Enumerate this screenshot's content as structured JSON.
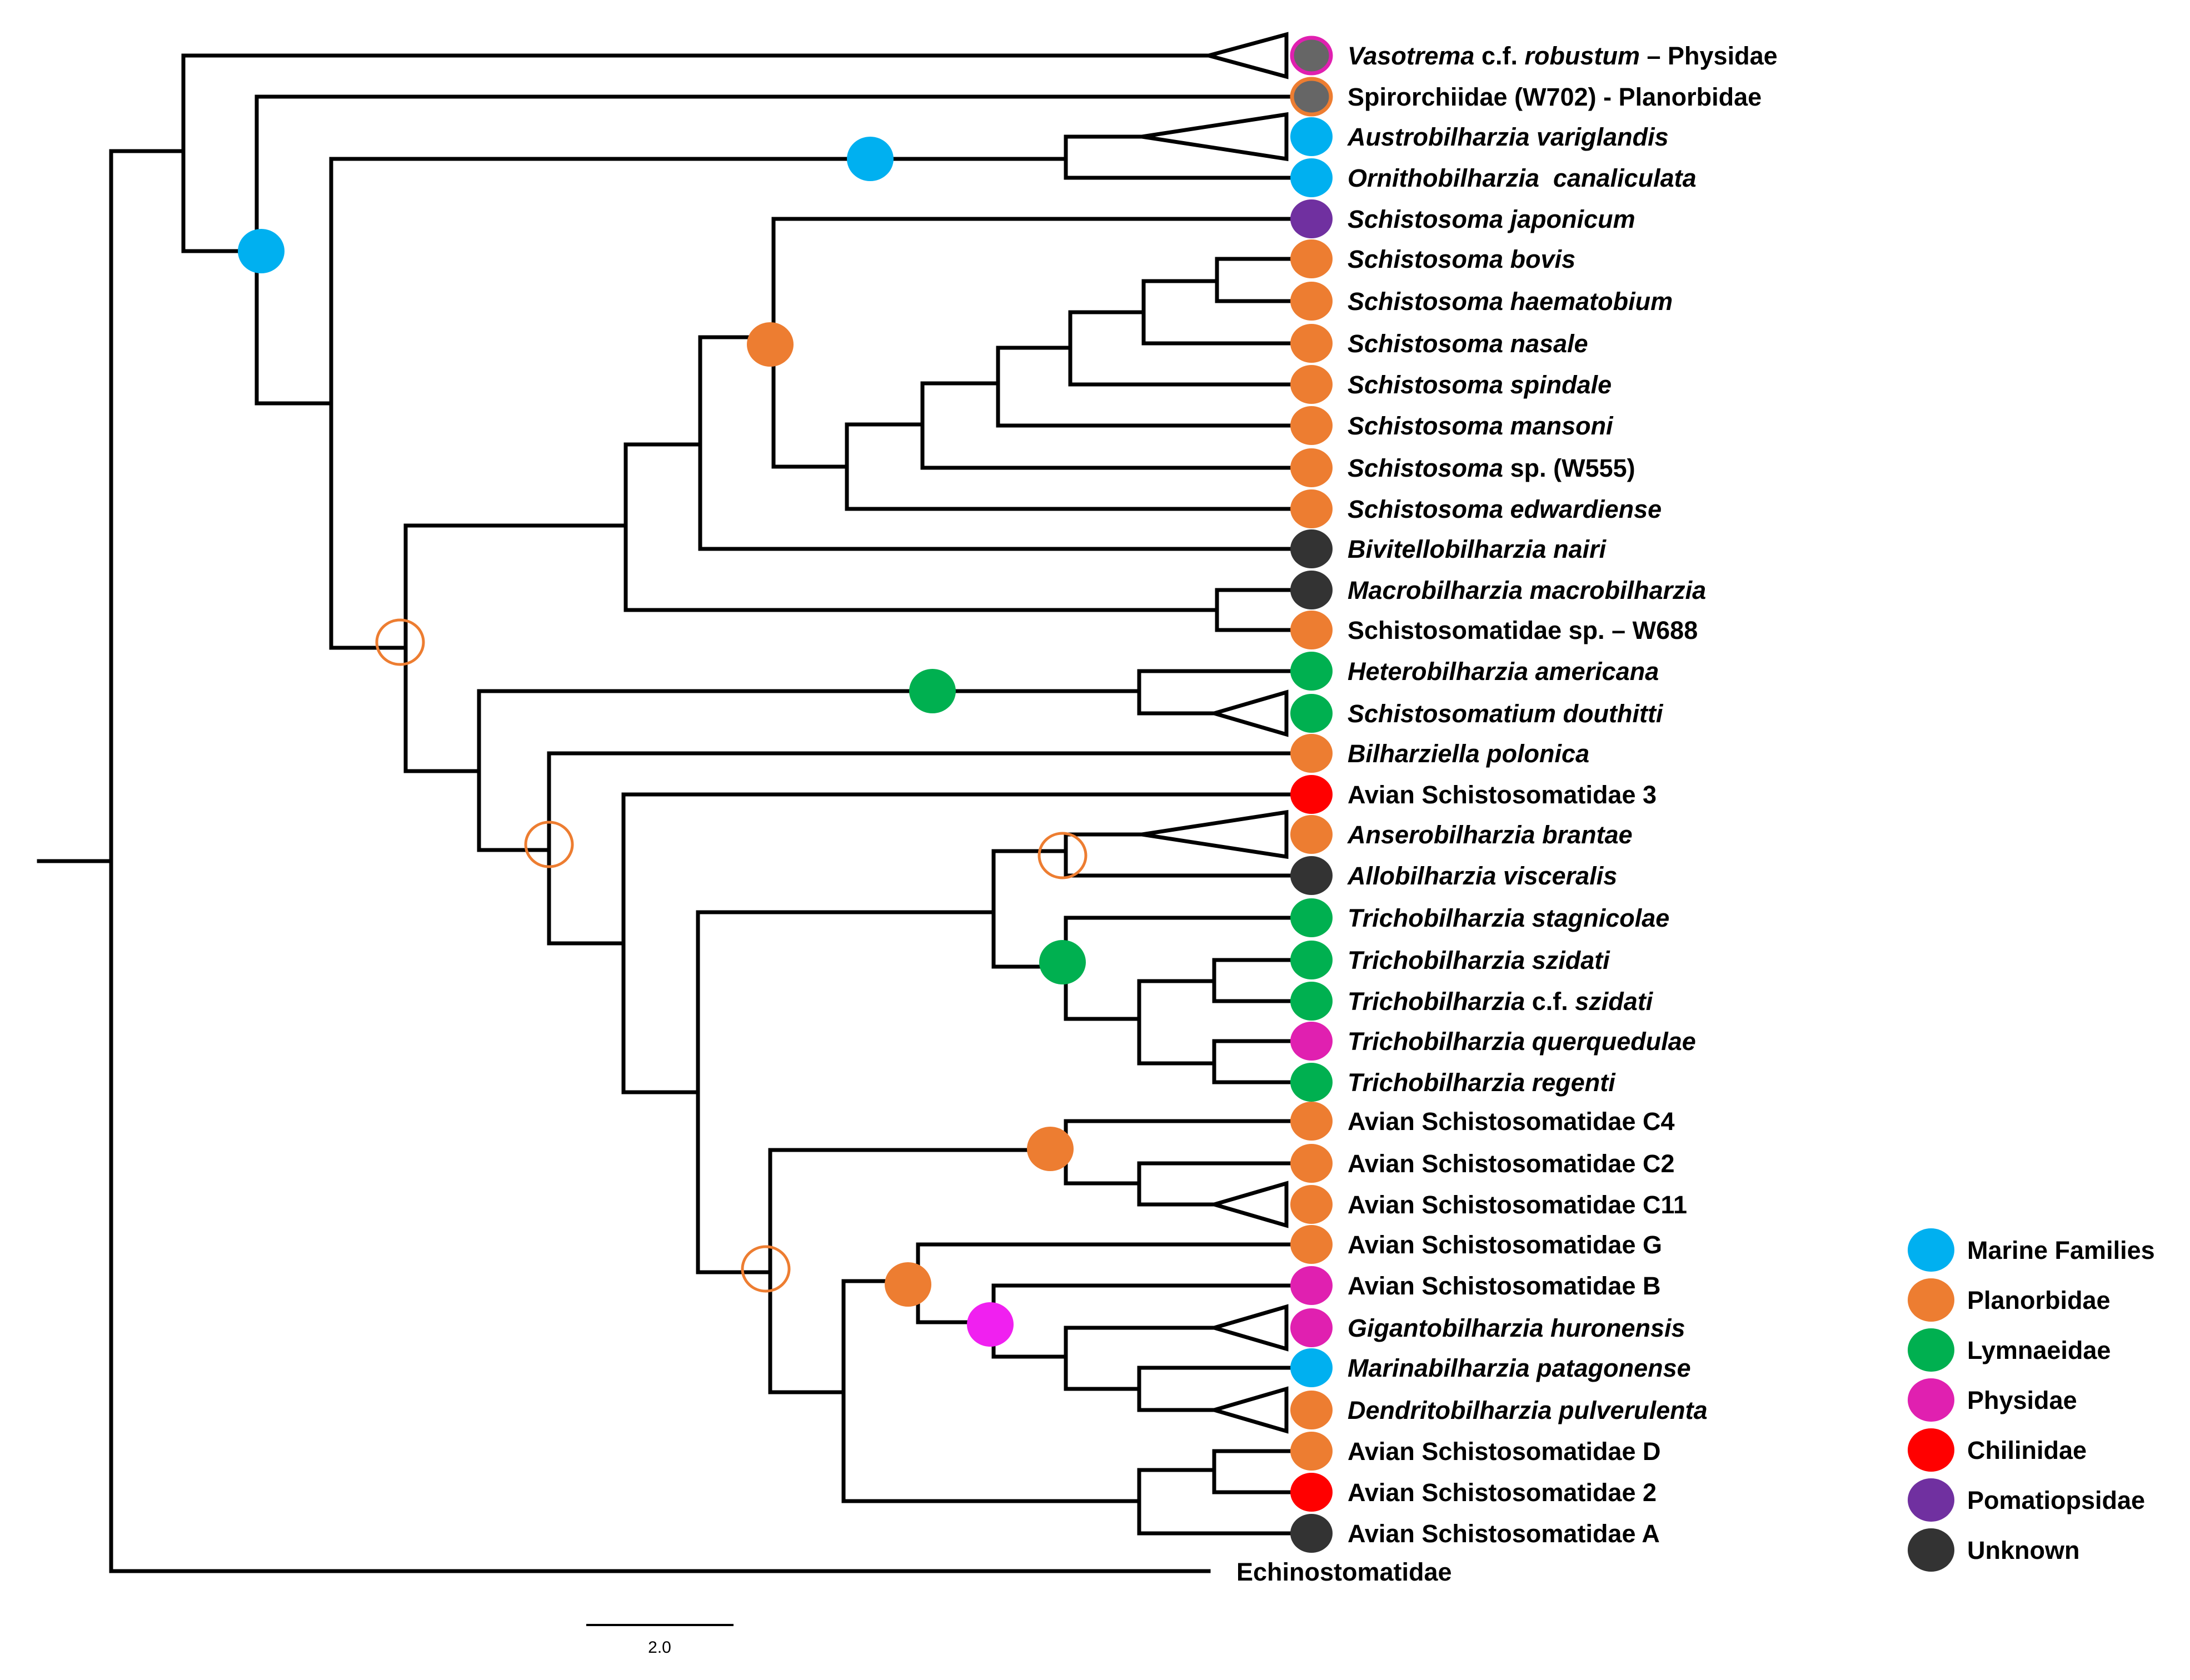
{
  "colors": {
    "marine": "#00B0F0",
    "planorbidae": "#ED7D31",
    "lymnaeidae": "#00B050",
    "physidae": "#E020B0",
    "physidae_bright": "#F020F0",
    "chilinidae": "#FF0000",
    "pomatiopsidae": "#7030A0",
    "unknown": "#333333",
    "grey": "#666666"
  },
  "taxa": [
    {
      "id": "t1",
      "parts": [
        {
          "text": "Vasotrema",
          "italic": true
        },
        {
          "text": " c.f. ",
          "italic": false
        },
        {
          "text": "robustum",
          "italic": true
        },
        {
          "text": " – Physidae",
          "italic": false
        }
      ],
      "dot": "grey",
      "dot_ring": "physidae"
    },
    {
      "id": "t2",
      "parts": [
        {
          "text": "Spirorchiidae (W702) - Planorbidae",
          "italic": false
        }
      ],
      "dot": "grey",
      "dot_ring": "planorbidae"
    },
    {
      "id": "t3",
      "parts": [
        {
          "text": "Austrobilharzia variglandis",
          "italic": true
        }
      ],
      "dot": "marine"
    },
    {
      "id": "t4",
      "parts": [
        {
          "text": "Ornithobilharzia  canaliculata",
          "italic": true
        }
      ],
      "dot": "marine"
    },
    {
      "id": "t5",
      "parts": [
        {
          "text": "Schistosoma japonicum",
          "italic": true
        }
      ],
      "dot": "pomatiopsidae"
    },
    {
      "id": "t6",
      "parts": [
        {
          "text": "Schistosoma bovis",
          "italic": true
        }
      ],
      "dot": "planorbidae"
    },
    {
      "id": "t7",
      "parts": [
        {
          "text": "Schistosoma haematobium",
          "italic": true
        }
      ],
      "dot": "planorbidae"
    },
    {
      "id": "t8",
      "parts": [
        {
          "text": "Schistosoma nasale",
          "italic": true
        }
      ],
      "dot": "planorbidae"
    },
    {
      "id": "t9",
      "parts": [
        {
          "text": "Schistosoma spindale",
          "italic": true
        }
      ],
      "dot": "planorbidae"
    },
    {
      "id": "t10",
      "parts": [
        {
          "text": "Schistosoma mansoni",
          "italic": true
        }
      ],
      "dot": "planorbidae"
    },
    {
      "id": "t11",
      "parts": [
        {
          "text": "Schistosoma",
          "italic": true
        },
        {
          "text": " sp. (W555)",
          "italic": false
        }
      ],
      "dot": "planorbidae"
    },
    {
      "id": "t12",
      "parts": [
        {
          "text": "Schistosoma edwardiense",
          "italic": true
        }
      ],
      "dot": "planorbidae"
    },
    {
      "id": "t13",
      "parts": [
        {
          "text": "Bivitellobilharzia nairi",
          "italic": true
        }
      ],
      "dot": "unknown"
    },
    {
      "id": "t14",
      "parts": [
        {
          "text": "Macrobilharzia macrobilharzia",
          "italic": true
        }
      ],
      "dot": "unknown"
    },
    {
      "id": "t15",
      "parts": [
        {
          "text": "Schistosomatidae sp. – W688",
          "italic": false
        }
      ],
      "dot": "planorbidae"
    },
    {
      "id": "t16",
      "parts": [
        {
          "text": "Heterobilharzia americana",
          "italic": true
        }
      ],
      "dot": "lymnaeidae"
    },
    {
      "id": "t17",
      "parts": [
        {
          "text": "Schistosomatium douthitti",
          "italic": true
        }
      ],
      "dot": "lymnaeidae"
    },
    {
      "id": "t18",
      "parts": [
        {
          "text": "Bilharziella polonica",
          "italic": true
        }
      ],
      "dot": "planorbidae"
    },
    {
      "id": "t19",
      "parts": [
        {
          "text": "Avian Schistosomatidae 3",
          "italic": false
        }
      ],
      "dot": "chilinidae"
    },
    {
      "id": "t20",
      "parts": [
        {
          "text": "Anserobilharzia brantae",
          "italic": true
        }
      ],
      "dot": "planorbidae"
    },
    {
      "id": "t21",
      "parts": [
        {
          "text": "Allobilharzia visceralis",
          "italic": true
        }
      ],
      "dot": "unknown"
    },
    {
      "id": "t22",
      "parts": [
        {
          "text": "Trichobilharzia stagnicolae",
          "italic": true
        }
      ],
      "dot": "lymnaeidae"
    },
    {
      "id": "t23",
      "parts": [
        {
          "text": "Trichobilharzia szidati",
          "italic": true
        }
      ],
      "dot": "lymnaeidae"
    },
    {
      "id": "t24",
      "parts": [
        {
          "text": "Trichobilharzia",
          "italic": true
        },
        {
          "text": " c.f. ",
          "italic": false
        },
        {
          "text": "szidati",
          "italic": true
        }
      ],
      "dot": "lymnaeidae"
    },
    {
      "id": "t25",
      "parts": [
        {
          "text": "Trichobilharzia querquedulae",
          "italic": true
        }
      ],
      "dot": "physidae"
    },
    {
      "id": "t26",
      "parts": [
        {
          "text": "Trichobilharzia regenti",
          "italic": true
        }
      ],
      "dot": "lymnaeidae"
    },
    {
      "id": "t27",
      "parts": [
        {
          "text": "Avian Schistosomatidae C4",
          "italic": false
        }
      ],
      "dot": "planorbidae"
    },
    {
      "id": "t28",
      "parts": [
        {
          "text": "Avian Schistosomatidae C2",
          "italic": false
        }
      ],
      "dot": "planorbidae"
    },
    {
      "id": "t29",
      "parts": [
        {
          "text": "Avian Schistosomatidae C11",
          "italic": false
        }
      ],
      "dot": "planorbidae"
    },
    {
      "id": "t30",
      "parts": [
        {
          "text": "Avian Schistosomatidae G",
          "italic": false
        }
      ],
      "dot": "planorbidae"
    },
    {
      "id": "t31",
      "parts": [
        {
          "text": "Avian Schistosomatidae B",
          "italic": false
        }
      ],
      "dot": "physidae"
    },
    {
      "id": "t32",
      "parts": [
        {
          "text": "Gigantobilharzia huronensis",
          "italic": true
        }
      ],
      "dot": "physidae"
    },
    {
      "id": "t33",
      "parts": [
        {
          "text": "Marinabilharzia patagonense",
          "italic": true
        }
      ],
      "dot": "marine"
    },
    {
      "id": "t34",
      "parts": [
        {
          "text": "Dendritobilharzia pulverulenta",
          "italic": true
        }
      ],
      "dot": "planorbidae"
    },
    {
      "id": "t35",
      "parts": [
        {
          "text": "Avian Schistosomatidae D",
          "italic": false
        }
      ],
      "dot": "planorbidae"
    },
    {
      "id": "t36",
      "parts": [
        {
          "text": "Avian Schistosomatidae 2",
          "italic": false
        }
      ],
      "dot": "chilinidae"
    },
    {
      "id": "t37",
      "parts": [
        {
          "text": "Avian Schistosomatidae A",
          "italic": false
        }
      ],
      "dot": "unknown"
    }
  ],
  "outgroup": {
    "label": "Echinostomatidae"
  },
  "legend": [
    {
      "label": "Marine Families",
      "color": "marine"
    },
    {
      "label": "Planorbidae",
      "color": "planorbidae"
    },
    {
      "label": "Lymnaeidae",
      "color": "lymnaeidae"
    },
    {
      "label": "Physidae",
      "color": "physidae"
    },
    {
      "label": "Chilinidae",
      "color": "chilinidae"
    },
    {
      "label": "Pomatiopsidae",
      "color": "pomatiopsidae"
    },
    {
      "label": "Unknown",
      "color": "unknown"
    }
  ],
  "node_states": [
    {
      "id": "n_spiro",
      "type": "filled",
      "color": "marine"
    },
    {
      "id": "n_marine",
      "type": "filled",
      "color": "marine"
    },
    {
      "id": "n_schisto",
      "type": "filled",
      "color": "planorbidae"
    },
    {
      "id": "n_core",
      "type": "open",
      "color": "planorbidae"
    },
    {
      "id": "n_hetero",
      "type": "filled",
      "color": "lymnaeidae"
    },
    {
      "id": "n_avian",
      "type": "open",
      "color": "planorbidae"
    },
    {
      "id": "n_anser",
      "type": "open",
      "color": "planorbidae"
    },
    {
      "id": "n_tricho",
      "type": "filled",
      "color": "lymnaeidae"
    },
    {
      "id": "n_c4",
      "type": "filled",
      "color": "planorbidae"
    },
    {
      "id": "n_lower",
      "type": "open",
      "color": "planorbidae"
    },
    {
      "id": "n_g",
      "type": "filled",
      "color": "planorbidae"
    },
    {
      "id": "n_giganto",
      "type": "filled",
      "color": "physidae_bright"
    }
  ],
  "scale": {
    "label": "2.0"
  }
}
